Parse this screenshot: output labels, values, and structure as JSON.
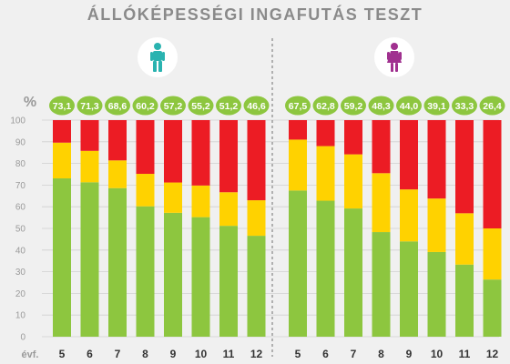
{
  "title": "ÁLLÓKÉPESSÉGI INGAFUTÁS TESZT",
  "colors": {
    "green": "#8dc63f",
    "yellow": "#ffd200",
    "red": "#ec1c24",
    "male_icon": "#2ab3b0",
    "female_icon": "#a0308f",
    "grid": "#cfcfcf",
    "axis_text": "#9a9a9a",
    "divider": "#9a9a9a"
  },
  "icons": {
    "left": "male-person-icon",
    "right": "female-person-icon"
  },
  "chart_data": [
    {
      "type": "bar",
      "stacked": true,
      "group": "male",
      "title": "",
      "ylabel": "%",
      "xlabel": "évf.",
      "ylim": [
        0,
        100
      ],
      "yticks": [
        0,
        10,
        20,
        30,
        40,
        50,
        60,
        70,
        80,
        90,
        100
      ],
      "grid": true,
      "categories": [
        "5",
        "6",
        "7",
        "8",
        "9",
        "10",
        "11",
        "12"
      ],
      "badge_labels": [
        "73,1",
        "71,3",
        "68,6",
        "60,2",
        "57,2",
        "55,2",
        "51,2",
        "46,6"
      ],
      "series": [
        {
          "color": "green",
          "values": [
            73.1,
            71.3,
            68.6,
            60.2,
            57.2,
            55.2,
            51.2,
            46.6
          ]
        },
        {
          "color": "yellow",
          "values": [
            16.5,
            14.5,
            12.8,
            15.0,
            14.0,
            14.6,
            15.5,
            16.4
          ]
        },
        {
          "color": "red",
          "values": [
            10.4,
            14.2,
            18.6,
            24.8,
            28.8,
            30.2,
            33.3,
            37.0
          ]
        }
      ]
    },
    {
      "type": "bar",
      "stacked": true,
      "group": "female",
      "title": "",
      "ylabel": "",
      "xlabel": "",
      "ylim": [
        0,
        100
      ],
      "grid": true,
      "categories": [
        "5",
        "6",
        "7",
        "8",
        "9",
        "10",
        "11",
        "12"
      ],
      "badge_labels": [
        "67,5",
        "62,8",
        "59,2",
        "48,3",
        "44,0",
        "39,1",
        "33,3",
        "26,4"
      ],
      "series": [
        {
          "color": "green",
          "values": [
            67.5,
            62.8,
            59.2,
            48.3,
            44.0,
            39.1,
            33.3,
            26.4
          ]
        },
        {
          "color": "yellow",
          "values": [
            23.5,
            25.2,
            25.0,
            27.2,
            24.0,
            24.7,
            23.7,
            23.6
          ]
        },
        {
          "color": "red",
          "values": [
            9.0,
            12.0,
            15.8,
            24.5,
            32.0,
            36.2,
            43.0,
            50.0
          ]
        }
      ]
    }
  ]
}
